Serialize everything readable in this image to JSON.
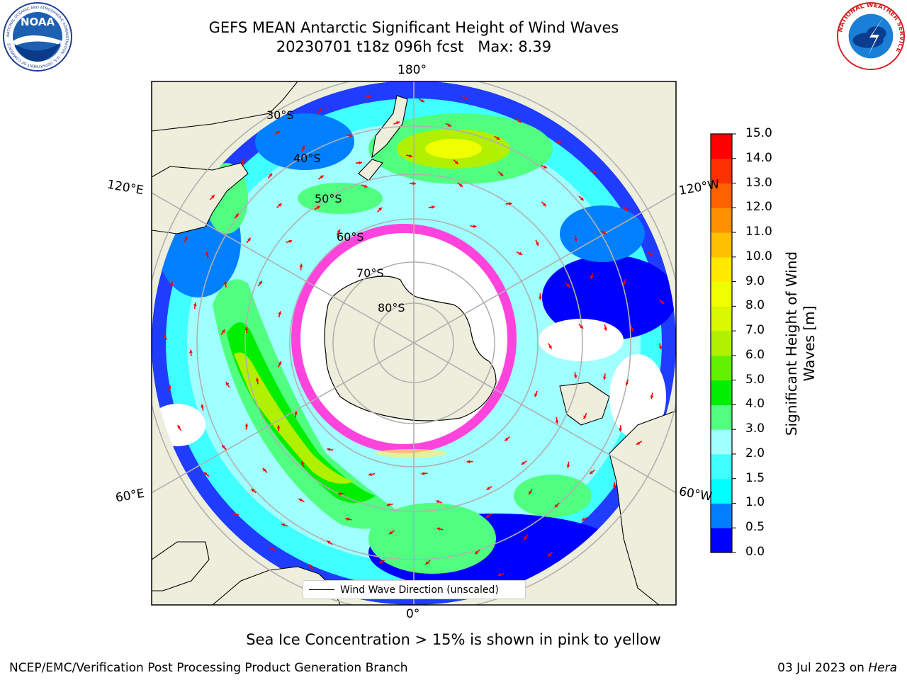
{
  "header": {
    "title_line1": "GEFS MEAN Antarctic Significant Height of Wind Waves",
    "title_line2": "20230701 t18z 096h fcst   Max: 8.39"
  },
  "logos": {
    "noaa_text": "NOAA",
    "noaa_ring_text": "NATIONAL OCEANIC AND ATMOSPHERIC ADMINISTRATION · U.S. DEPARTMENT OF COMMERCE",
    "nws_ring_text": "NATIONAL WEATHER SERVICE"
  },
  "map": {
    "longitude_labels": {
      "top": "180°",
      "bottom": "0°",
      "left_upper": "120°E",
      "left_lower": "60°E",
      "right_upper": "120°W",
      "right_lower": "60°W"
    },
    "latitude_labels": [
      "30°S",
      "40°S",
      "50°S",
      "60°S",
      "70°S",
      "80°S"
    ],
    "legend_label": "Wind Wave Direction (unscaled)",
    "colors": {
      "land": "#eeeedc",
      "arrow": "#ff0000",
      "sea_ice": "#ff44dd",
      "grid": "#b0b0b0"
    }
  },
  "colorbar": {
    "title": "Significant Height of Wind Waves [m]",
    "title_line1": "Significant Height of Wind",
    "title_line2": "Waves [m]",
    "ticks": [
      "0.0",
      "0.5",
      "1.0",
      "1.5",
      "2.0",
      "3.0",
      "4.0",
      "5.0",
      "6.0",
      "7.0",
      "8.0",
      "9.0",
      "10.0",
      "11.0",
      "12.0",
      "13.0",
      "14.0",
      "15.0"
    ],
    "colors": [
      "#0000ff",
      "#0080ff",
      "#00ffff",
      "#40ffff",
      "#a0ffff",
      "#50ff80",
      "#00ee00",
      "#60f000",
      "#b0f000",
      "#d8f800",
      "#f0ff00",
      "#ffea00",
      "#ffc000",
      "#ff9000",
      "#ff6000",
      "#ff3000",
      "#ff0000"
    ]
  },
  "footer": {
    "sea_ice_note": "Sea Ice Concentration > 15% is shown in pink to yellow",
    "left": "NCEP/EMC/Verification Post Processing Product Generation Branch",
    "date": "03 Jul 2023 on ",
    "host": "Hera"
  }
}
